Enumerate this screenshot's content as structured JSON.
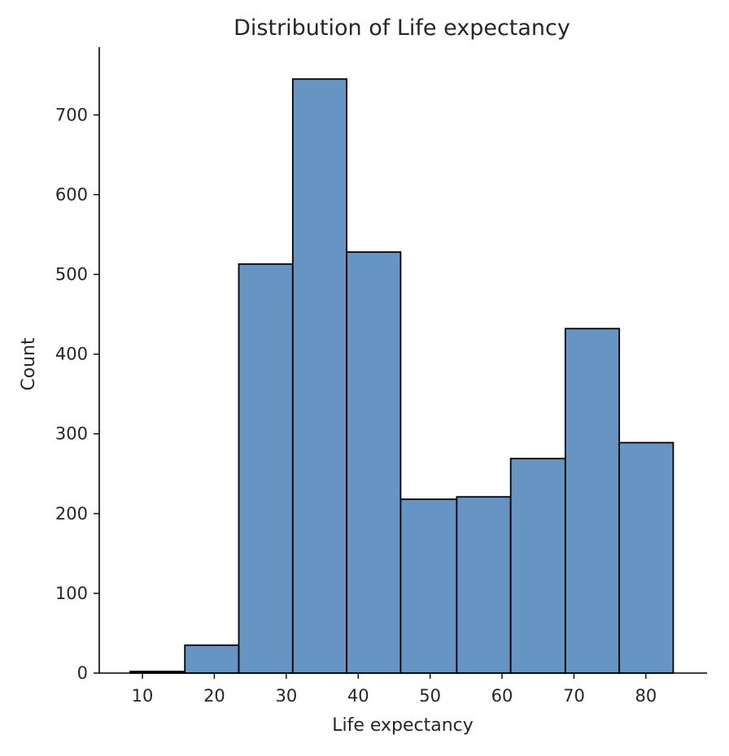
{
  "chart_data": {
    "type": "bar",
    "title": "Distribution of Life expectancy",
    "xlabel": "Life expectancy",
    "ylabel": "Count",
    "xlim": [
      4,
      88.5
    ],
    "ylim": [
      0,
      785
    ],
    "xticks": [
      10,
      20,
      30,
      40,
      50,
      60,
      70,
      80
    ],
    "yticks": [
      0,
      100,
      200,
      300,
      400,
      500,
      600,
      700
    ],
    "bin_edges": [
      8.3,
      15.9,
      23.4,
      30.9,
      38.4,
      45.9,
      53.7,
      61.2,
      68.8,
      76.3,
      83.8
    ],
    "values": [
      2,
      35,
      513,
      745,
      528,
      218,
      221,
      269,
      432,
      289
    ],
    "bar_color": "#6795c3",
    "edge_color": "#000000",
    "grid": false,
    "legend": "none"
  }
}
